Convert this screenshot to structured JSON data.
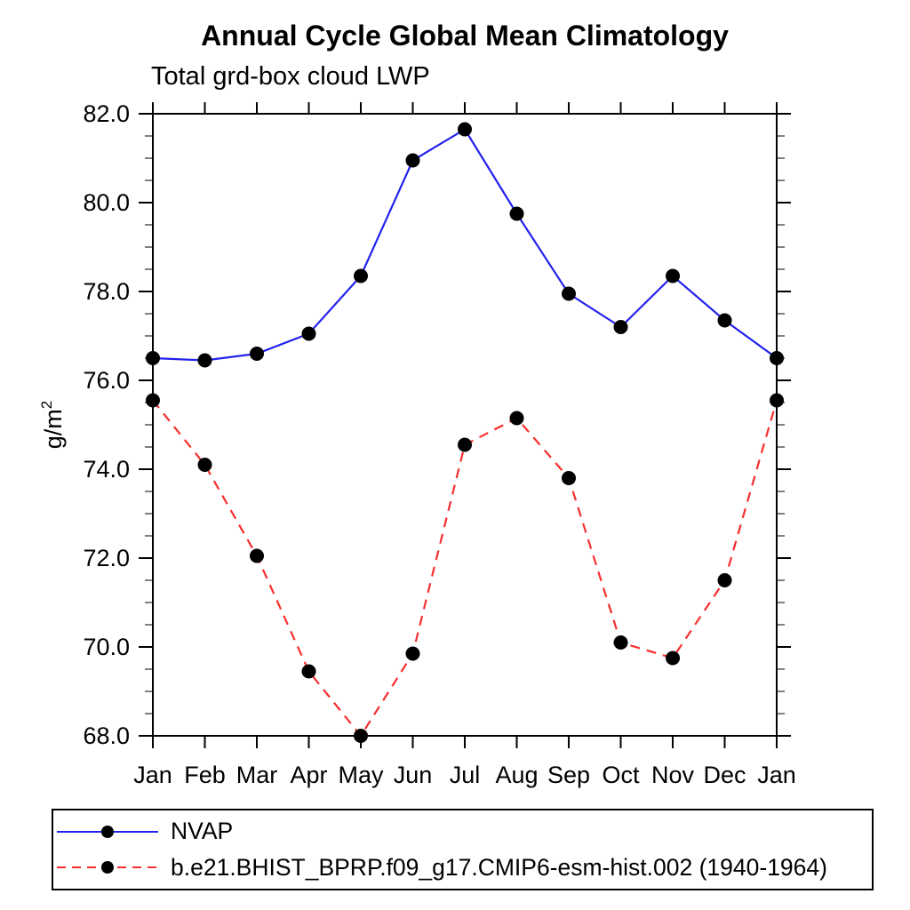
{
  "header": {
    "title": "Annual Cycle Global Mean Climatology",
    "subtitle": "Total grd-box cloud LWP"
  },
  "chart_data": {
    "type": "line",
    "title": "Annual Cycle Global Mean Climatology",
    "subtitle": "Total grd-box cloud LWP",
    "xlabel": "",
    "ylabel": "g/m²",
    "ylabel_base": "g/m",
    "ylabel_sup": "2",
    "categories": [
      "Jan",
      "Feb",
      "Mar",
      "Apr",
      "May",
      "Jun",
      "Jul",
      "Aug",
      "Sep",
      "Oct",
      "Nov",
      "Dec",
      "Jan"
    ],
    "ylim": [
      68.0,
      82.0
    ],
    "ytick_major_step": 2.0,
    "ytick_minor_step": 0.5,
    "ytick_labels": [
      "68.0",
      "70.0",
      "72.0",
      "74.0",
      "76.0",
      "78.0",
      "80.0",
      "82.0"
    ],
    "grid": false,
    "legend_position": "bottom-left-boxed",
    "frame_color": "#000000",
    "series": [
      {
        "name": "NVAP",
        "color": "#2222ee",
        "line_style": "solid",
        "marker": "filled-circle",
        "marker_color": "#000000",
        "values": [
          76.5,
          76.45,
          76.6,
          77.05,
          78.35,
          80.95,
          81.65,
          79.75,
          77.95,
          77.2,
          78.35,
          77.35,
          76.5
        ]
      },
      {
        "name": "b.e21.BHIST_BPRP.f09_g17.CMIP6-esm-hist.002 (1940-1964)",
        "color": "#f82e2e",
        "line_style": "dashed",
        "marker": "filled-circle",
        "marker_color": "#000000",
        "values": [
          75.55,
          74.1,
          72.05,
          69.45,
          68.0,
          69.85,
          74.55,
          75.15,
          73.8,
          70.1,
          69.75,
          71.5,
          75.55
        ]
      }
    ]
  }
}
